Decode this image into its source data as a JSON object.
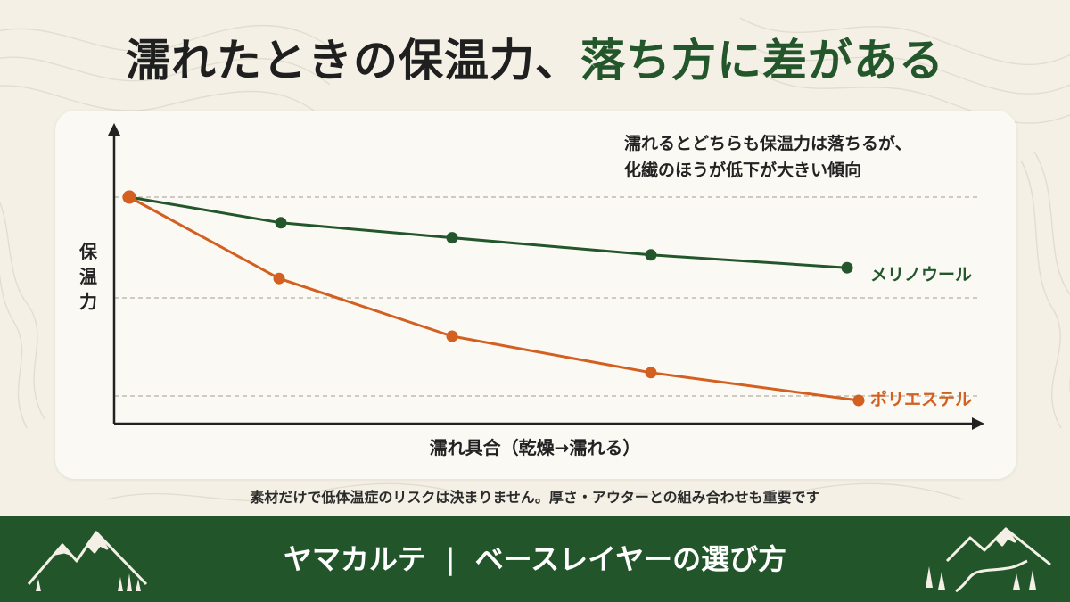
{
  "title": {
    "part1": "濡れたときの保温力、",
    "part2": "落ち方に差がある"
  },
  "chart_data": {
    "type": "line",
    "x": [
      0,
      1,
      2,
      3,
      4
    ],
    "xlabel": "濡れ具合（乾燥→濡れる）",
    "ylabel": "保温力",
    "ylim": [
      0,
      100
    ],
    "grid": "horizontal dashed",
    "series": [
      {
        "name": "メリノウール",
        "color": "#24562c",
        "values": [
          100,
          88,
          81,
          73,
          67
        ]
      },
      {
        "name": "ポリエステル",
        "color": "#d35f20",
        "values": [
          100,
          62,
          35,
          18,
          5
        ]
      }
    ],
    "annotation": [
      "濡れるとどちらも保温力は落ちるが、",
      "化繊のほうが低下が大きい傾向"
    ]
  },
  "footnote": "素材だけで低体温症のリスクは決まりません。厚さ・アウターとの組み合わせも重要です",
  "footer": {
    "brand": "ヤマカルテ",
    "separator": "|",
    "subtitle": "ベースレイヤーの選び方",
    "left_icon": "mountain-icon",
    "right_icon": "mountain-trail-icon"
  }
}
